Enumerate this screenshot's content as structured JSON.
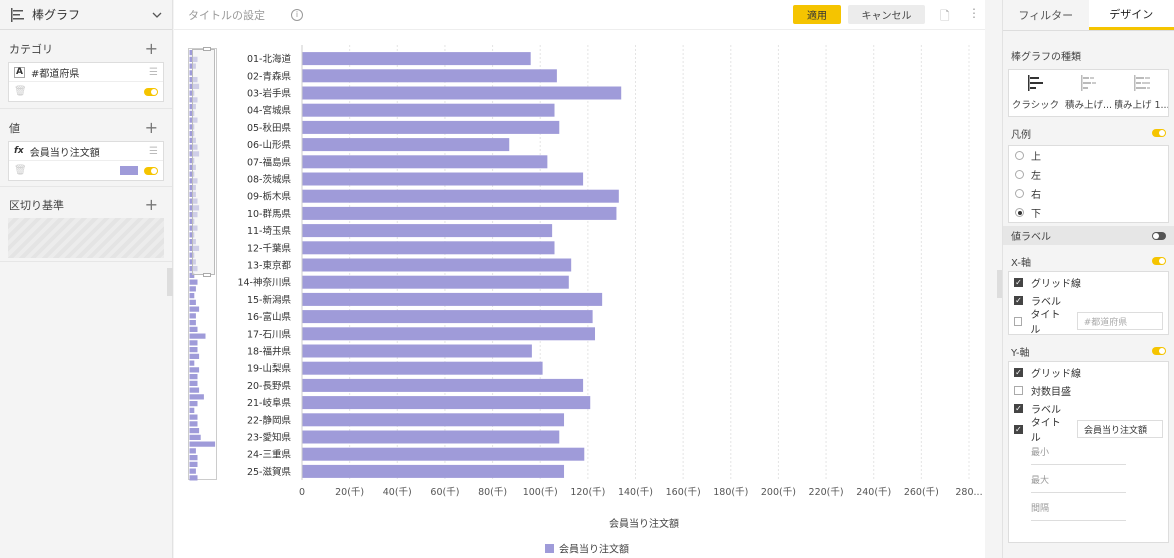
{
  "left_panel": {
    "visualization": "棒グラフ",
    "category_title": "カテゴリ",
    "category_field": "#都道府県",
    "value_title": "値",
    "value_field": "会員当り注文額",
    "breakdown_title": "区切り基準"
  },
  "toolbar": {
    "title_placeholder": "タイトルの設定",
    "apply_label": "適用",
    "cancel_label": "キャンセル"
  },
  "right_panel": {
    "tabs": [
      "フィルター",
      "デザイン"
    ],
    "active_tab": "デザイン",
    "chart_type_title": "棒グラフの種類",
    "chart_types": [
      "クラシック",
      "積み上げ...",
      "積み上げ 1..."
    ],
    "legend_title": "凡例",
    "legend_options": [
      "上",
      "左",
      "右",
      "下"
    ],
    "legend_selected": "下",
    "value_label_title": "値ラベル",
    "x_axis": {
      "title": "X-軸",
      "grid": "グリッド線",
      "label": "ラベル",
      "axis_title": "タイトル",
      "axis_title_placeholder": "#都道府県"
    },
    "y_axis": {
      "title": "Y-軸",
      "grid": "グリッド線",
      "log": "対数目盛",
      "label": "ラベル",
      "axis_title": "タイトル",
      "axis_title_value": "会員当り注文額",
      "min": "最小",
      "max": "最大",
      "interval": "間隔"
    }
  },
  "chart_data": {
    "type": "bar",
    "orientation": "horizontal",
    "categories": [
      "01-北海道",
      "02-青森県",
      "03-岩手県",
      "04-宮城県",
      "05-秋田県",
      "06-山形県",
      "07-福島県",
      "08-茨城県",
      "09-栃木県",
      "10-群馬県",
      "11-埼玉県",
      "12-千葉県",
      "13-東京都",
      "14-神奈川県",
      "15-新潟県",
      "16-富山県",
      "17-石川県",
      "18-福井県",
      "19-山梨県",
      "20-長野県",
      "21-岐阜県",
      "22-静岡県",
      "23-愛知県",
      "24-三重県",
      "25-滋賀県"
    ],
    "values": [
      96000,
      107000,
      134000,
      106000,
      108000,
      87000,
      103000,
      118000,
      133000,
      132000,
      105000,
      106000,
      113000,
      112000,
      126000,
      122000,
      123000,
      96500,
      101000,
      118000,
      121000,
      110000,
      108000,
      118500,
      110000
    ],
    "xlabel": "会員当り注文額",
    "xticks": [
      "0",
      "20(千)",
      "40(千)",
      "60(千)",
      "80(千)",
      "100(千)",
      "120(千)",
      "140(千)",
      "160(千)",
      "180(千)",
      "200(千)",
      "220(千)",
      "240(千)",
      "260(千)",
      "280..."
    ],
    "xlim": [
      0,
      280000
    ],
    "legend": "会員当り注文額",
    "legend_position": "bottom",
    "color": "#9f9bd9",
    "grid": true
  },
  "navigator_values": [
    0.2,
    0.5,
    0.4,
    0.2,
    0.5,
    0.6,
    0.3,
    0.5,
    0.4,
    0.3,
    0.5,
    0.3,
    0.3,
    0.4,
    0.5,
    0.6,
    0.3,
    0.4,
    0.3,
    0.5,
    0.4,
    0.4,
    0.5,
    0.6,
    0.5,
    0.3,
    0.5,
    0.3,
    0.4,
    0.6,
    0.3,
    0.4,
    0.5,
    0.3,
    0.5,
    0.4,
    0.3,
    0.4,
    0.6,
    0.4,
    0.4,
    0.5,
    1.0,
    0.5,
    0.5,
    0.6,
    0.3,
    0.6,
    0.5,
    0.5,
    0.6,
    0.9,
    0.5,
    0.3,
    0.5,
    0.5,
    0.6,
    0.7,
    1.6,
    0.4,
    0.5,
    0.5,
    0.4,
    0.5
  ]
}
